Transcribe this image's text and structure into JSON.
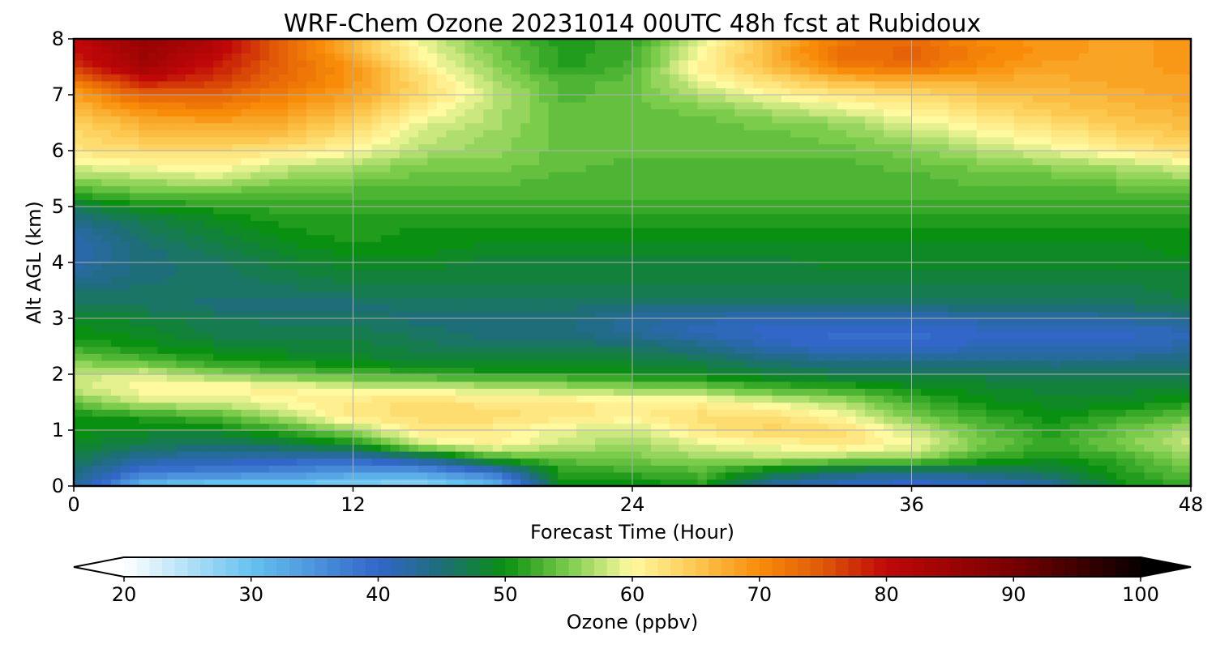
{
  "chart_data": {
    "type": "heatmap",
    "title": "WRF-Chem Ozone  20231014 00UTC 48h fcst at Rubidoux",
    "xlabel": "Forecast Time (Hour)",
    "ylabel": "Alt AGL (km)",
    "xlim": [
      0,
      48
    ],
    "ylim": [
      0,
      8
    ],
    "x_ticks": [
      0,
      12,
      24,
      36,
      48
    ],
    "x_tick_labels": [
      "0",
      "12",
      "24",
      "36",
      "48"
    ],
    "y_ticks": [
      0,
      1,
      2,
      3,
      4,
      5,
      6,
      7,
      8
    ],
    "y_tick_labels": [
      "0",
      "1",
      "2",
      "3",
      "4",
      "5",
      "6",
      "7",
      "8"
    ],
    "grid": true,
    "hours": [
      0,
      3,
      6,
      9,
      12,
      15,
      18,
      21,
      24,
      27,
      30,
      33,
      36,
      39,
      42,
      45,
      48
    ],
    "altitudes_km": [
      0,
      0.25,
      0.5,
      0.75,
      1,
      1.25,
      1.5,
      1.75,
      2,
      2.25,
      2.5,
      2.75,
      3,
      3.25,
      3.5,
      3.75,
      4,
      4.25,
      4.5,
      4.75,
      5,
      5.25,
      5.5,
      5.75,
      6,
      6.25,
      6.5,
      6.75,
      7,
      7.25,
      7.5,
      7.75,
      8
    ],
    "ozone_ppbv": [
      [
        44,
        30,
        28,
        28,
        27,
        26,
        30,
        50,
        49,
        51,
        42,
        40,
        39,
        40,
        42,
        50,
        52
      ],
      [
        45,
        38,
        37,
        36,
        34,
        34,
        38,
        51,
        52,
        53,
        48,
        45,
        44,
        45,
        47,
        51,
        54
      ],
      [
        47,
        43,
        42,
        41,
        40,
        44,
        52,
        54,
        55,
        56,
        57,
        56,
        56,
        52,
        50,
        52,
        56
      ],
      [
        49,
        47,
        46,
        47,
        50,
        58,
        61,
        58,
        56,
        59,
        60,
        62,
        60,
        55,
        52,
        55,
        58
      ],
      [
        50,
        49,
        49,
        52,
        56,
        62,
        61,
        59,
        58,
        62,
        64,
        63,
        58,
        54,
        51,
        54,
        57
      ],
      [
        50,
        51,
        53,
        57,
        62,
        63,
        63,
        62,
        61,
        63,
        63,
        60,
        55,
        52,
        50,
        52,
        54
      ],
      [
        54,
        58,
        58,
        60,
        62,
        63,
        62,
        62,
        61,
        61,
        59,
        57,
        53,
        50,
        49,
        49,
        51
      ],
      [
        58,
        60,
        61,
        61,
        59,
        59,
        58,
        57,
        56,
        55,
        53,
        52,
        50,
        49,
        48,
        48,
        49
      ],
      [
        58,
        59,
        56,
        54,
        53,
        52,
        51,
        51,
        50,
        49,
        48,
        47,
        47,
        47,
        46,
        46,
        47
      ],
      [
        55,
        53,
        51,
        50,
        49,
        48,
        48,
        48,
        48,
        47,
        45,
        44,
        44,
        44,
        44,
        44,
        45
      ],
      [
        52,
        50,
        49,
        48,
        48,
        47,
        46,
        46,
        46,
        44,
        41,
        40,
        40,
        41,
        41,
        41,
        42
      ],
      [
        50,
        49,
        47,
        47,
        47,
        46,
        45,
        45,
        43,
        41,
        40,
        39,
        39,
        40,
        40,
        40,
        41
      ],
      [
        49,
        48,
        47,
        46,
        46,
        45,
        45,
        45,
        43,
        42,
        41,
        41,
        41,
        42,
        42,
        43,
        44
      ],
      [
        47,
        46,
        45,
        45,
        45,
        46,
        46,
        46,
        45,
        45,
        45,
        45,
        45,
        46,
        46,
        46,
        47
      ],
      [
        45,
        46,
        46,
        46,
        47,
        47,
        47,
        47,
        47,
        47,
        47,
        47,
        47,
        47,
        47,
        47,
        48
      ],
      [
        43,
        45,
        46,
        47,
        48,
        48,
        48,
        48,
        48,
        48,
        48,
        48,
        48,
        48,
        48,
        48,
        48
      ],
      [
        42,
        45,
        46,
        48,
        49,
        49,
        48,
        48,
        48,
        48,
        48,
        49,
        49,
        49,
        49,
        49,
        49
      ],
      [
        41,
        45,
        47,
        49,
        50,
        50,
        49,
        49,
        49,
        49,
        49,
        49,
        49,
        49,
        49,
        49,
        50
      ],
      [
        42,
        46,
        48,
        50,
        51,
        50,
        50,
        50,
        50,
        50,
        50,
        50,
        50,
        50,
        50,
        50,
        50
      ],
      [
        44,
        47,
        49,
        51,
        51,
        51,
        51,
        51,
        51,
        51,
        51,
        51,
        51,
        51,
        51,
        51,
        51
      ],
      [
        47,
        50,
        51,
        52,
        52,
        52,
        52,
        52,
        52,
        52,
        52,
        52,
        52,
        52,
        52,
        52,
        52
      ],
      [
        52,
        54,
        54,
        53,
        53,
        53,
        53,
        53,
        53,
        53,
        53,
        53,
        53,
        53,
        53,
        53,
        54
      ],
      [
        56,
        57,
        58,
        56,
        55,
        54,
        54,
        53,
        53,
        53,
        53,
        53,
        53,
        54,
        54,
        55,
        56
      ],
      [
        59,
        60,
        61,
        58,
        57,
        55,
        55,
        54,
        53,
        53,
        53,
        53,
        54,
        55,
        56,
        57,
        59
      ],
      [
        62,
        63,
        63,
        62,
        60,
        57,
        56,
        54,
        54,
        54,
        54,
        54,
        55,
        57,
        59,
        61,
        63
      ],
      [
        63,
        65,
        66,
        65,
        62,
        58,
        56,
        54,
        54,
        54,
        54,
        55,
        57,
        59,
        61,
        63,
        65
      ],
      [
        64,
        67,
        68,
        67,
        64,
        59,
        57,
        54,
        54,
        54,
        55,
        56,
        59,
        61,
        63,
        65,
        66
      ],
      [
        66,
        70,
        71,
        69,
        66,
        61,
        57,
        54,
        54,
        55,
        57,
        59,
        61,
        63,
        65,
        66,
        67
      ],
      [
        68,
        74,
        74,
        71,
        68,
        63,
        58,
        53,
        54,
        57,
        60,
        62,
        63,
        65,
        66,
        67,
        68
      ],
      [
        72,
        79,
        77,
        73,
        69,
        63,
        57,
        53,
        54,
        59,
        63,
        66,
        67,
        67,
        67,
        68,
        68
      ],
      [
        77,
        84,
        79,
        74,
        69,
        61,
        56,
        51,
        53,
        61,
        66,
        71,
        73,
        70,
        68,
        68,
        69
      ],
      [
        79,
        85,
        81,
        74,
        67,
        60,
        55,
        51,
        52,
        60,
        67,
        73,
        74,
        71,
        69,
        68,
        69
      ],
      [
        80,
        86,
        82,
        74,
        66,
        59,
        54,
        51,
        52,
        59,
        66,
        72,
        73,
        70,
        69,
        68,
        69
      ]
    ],
    "colorbar": {
      "label": "Ozone  (ppbv)",
      "min": 20,
      "max": 100,
      "ticks": [
        20,
        30,
        40,
        50,
        60,
        70,
        80,
        90,
        100
      ],
      "tick_labels": [
        "20",
        "30",
        "40",
        "50",
        "60",
        "70",
        "80",
        "90",
        "100"
      ],
      "extend": "both",
      "extend_low_color": "#ffffff",
      "extend_high_color": "#000000",
      "color_stops": [
        {
          "value": 20,
          "color": "#ffffff"
        },
        {
          "value": 30,
          "color": "#66c2f0"
        },
        {
          "value": 40,
          "color": "#3266c8"
        },
        {
          "value": 45,
          "color": "#1e6e7a"
        },
        {
          "value": 50,
          "color": "#0a9010"
        },
        {
          "value": 55,
          "color": "#7ccc4c"
        },
        {
          "value": 60,
          "color": "#fffaa0"
        },
        {
          "value": 65,
          "color": "#fcc850"
        },
        {
          "value": 70,
          "color": "#f88c08"
        },
        {
          "value": 75,
          "color": "#e05808"
        },
        {
          "value": 80,
          "color": "#c00808"
        },
        {
          "value": 90,
          "color": "#780000"
        },
        {
          "value": 100,
          "color": "#080000"
        }
      ]
    }
  }
}
